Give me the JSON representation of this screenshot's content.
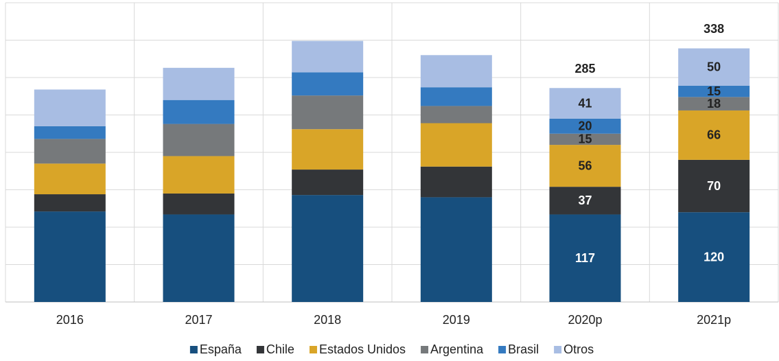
{
  "chart_data": {
    "type": "stacked_bar",
    "categories": [
      "2016",
      "2017",
      "2018",
      "2019",
      "2020p",
      "2021p"
    ],
    "series": [
      {
        "name": "España",
        "color": "#174f7e",
        "values": [
          121,
          117,
          143,
          140,
          117,
          120
        ]
      },
      {
        "name": "Chile",
        "color": "#333538",
        "values": [
          23,
          28,
          34,
          41,
          37,
          70
        ]
      },
      {
        "name": "Estados Unidos",
        "color": "#d9a528",
        "values": [
          41,
          50,
          54,
          58,
          56,
          66
        ]
      },
      {
        "name": "Argentina",
        "color": "#76797b",
        "values": [
          33,
          43,
          45,
          23,
          15,
          18
        ]
      },
      {
        "name": "Brasil",
        "color": "#347ac0",
        "values": [
          17,
          32,
          31,
          25,
          20,
          15
        ]
      },
      {
        "name": "Otros",
        "color": "#a8bde3",
        "values": [
          49,
          43,
          42,
          43,
          41,
          50
        ]
      }
    ],
    "totals": [
      null,
      null,
      null,
      null,
      285,
      338
    ],
    "label_from_index": 4,
    "ylim": [
      0,
      400
    ],
    "yticks": [
      0,
      50,
      100,
      150,
      200,
      250,
      300,
      350,
      400
    ],
    "grid": true,
    "legend": "bottom"
  }
}
